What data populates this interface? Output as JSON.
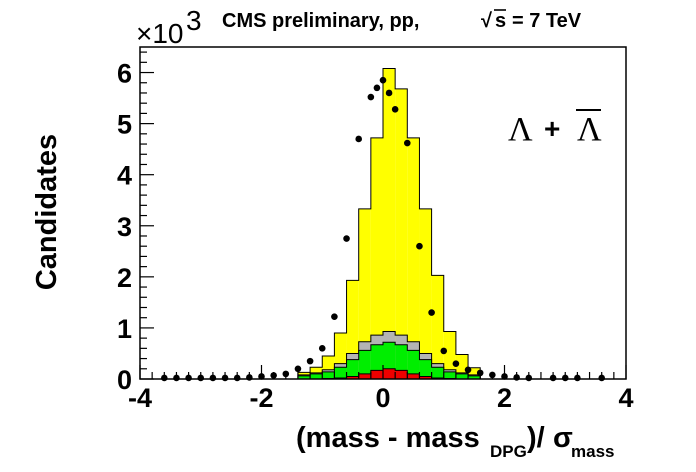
{
  "chart_data": {
    "type": "bar",
    "title": "CMS preliminary, pp,  √s = 7 TeV",
    "title_parts": {
      "prefix": "CMS preliminary, pp,",
      "sqrt": "√",
      "s": "s",
      "suffix": "= 7 TeV"
    },
    "ylabel": "Candidates",
    "xlabel_parts": {
      "main": "(mass - mass",
      "sub1": "DPG",
      "mid": ")/",
      "sigma": "σ",
      "sub2": "mass"
    },
    "y_multiplier": {
      "base": "×10",
      "exp": "3"
    },
    "annotation": {
      "lambda": "Λ",
      "plus": "+",
      "lambda_bar": "Λ"
    },
    "xlim": [
      -4,
      4
    ],
    "ylim": [
      0,
      6.5
    ],
    "x_ticks": [
      "-4",
      "-2",
      "0",
      "2",
      "4"
    ],
    "y_ticks": [
      "0",
      "1",
      "2",
      "3",
      "4",
      "5",
      "6"
    ],
    "bin_edges": [
      -1.4,
      -1.2,
      -1.0,
      -0.8,
      -0.6,
      -0.4,
      -0.2,
      0.0,
      0.2,
      0.4,
      0.6,
      0.8,
      1.0,
      1.2,
      1.4,
      1.6
    ],
    "series": [
      {
        "color": "#ffff00",
        "values": [
          0.13,
          0.23,
          0.45,
          0.9,
          1.93,
          3.33,
          4.72,
          6.08,
          5.68,
          4.72,
          3.33,
          2.03,
          0.93,
          0.48,
          0.22
        ]
      },
      {
        "color": "#b4b4b4",
        "values": [
          0.08,
          0.12,
          0.18,
          0.3,
          0.5,
          0.73,
          0.86,
          0.93,
          0.86,
          0.73,
          0.5,
          0.3,
          0.18,
          0.12,
          0.08
        ]
      },
      {
        "color": "#00ee00",
        "values": [
          0.06,
          0.1,
          0.14,
          0.23,
          0.38,
          0.56,
          0.67,
          0.72,
          0.67,
          0.56,
          0.38,
          0.23,
          0.14,
          0.1,
          0.06
        ]
      },
      {
        "color": "#ee0000",
        "values": [
          0.0,
          0.0,
          0.01,
          0.02,
          0.05,
          0.1,
          0.17,
          0.2,
          0.17,
          0.1,
          0.05,
          0.02,
          0.01,
          0.0,
          0.0
        ]
      }
    ],
    "data_points": {
      "x": [
        -3.6,
        -3.4,
        -3.2,
        -3.0,
        -2.8,
        -2.6,
        -2.4,
        -2.2,
        -2.0,
        -1.8,
        -1.6,
        -1.4,
        -1.2,
        -1.0,
        -0.8,
        -0.6,
        -0.4,
        -0.2,
        -0.1,
        0.0,
        0.1,
        0.2,
        0.4,
        0.6,
        0.8,
        1.0,
        1.2,
        1.4,
        1.6,
        1.8,
        2.0,
        2.2,
        2.4,
        2.8,
        3.0,
        3.2,
        3.6
      ],
      "y": [
        0.02,
        0.02,
        0.02,
        0.02,
        0.02,
        0.02,
        0.02,
        0.03,
        0.05,
        0.07,
        0.1,
        0.2,
        0.35,
        0.6,
        1.22,
        2.75,
        4.7,
        5.52,
        5.7,
        5.85,
        5.6,
        5.28,
        4.62,
        2.6,
        1.3,
        0.55,
        0.3,
        0.18,
        0.12,
        0.08,
        0.05,
        0.03,
        0.02,
        0.02,
        0.02,
        0.02,
        0.02
      ]
    },
    "marker_color": "#000000",
    "grid": false,
    "legend": "none"
  }
}
